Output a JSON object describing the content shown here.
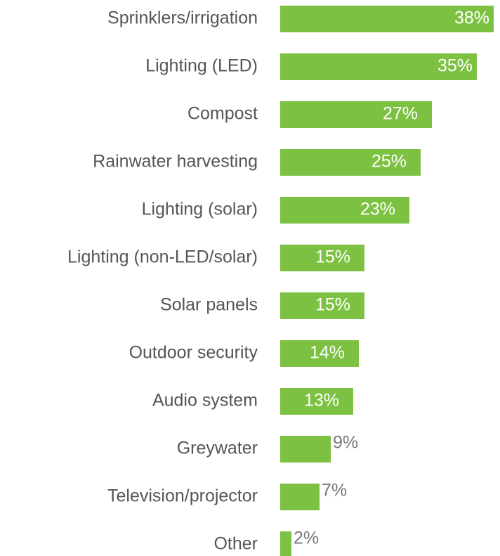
{
  "chart_data": {
    "type": "bar",
    "orientation": "horizontal",
    "categories": [
      "Sprinklers/irrigation",
      "Lighting (LED)",
      "Compost",
      "Rainwater harvesting",
      "Lighting (solar)",
      "Lighting (non-LED/solar)",
      "Solar panels",
      "Outdoor security",
      "Audio system",
      "Greywater",
      "Television/projector",
      "Other"
    ],
    "values": [
      38,
      35,
      27,
      25,
      23,
      15,
      15,
      14,
      13,
      9,
      7,
      2
    ],
    "value_labels": [
      "38%",
      "35%",
      "27%",
      "25%",
      "23%",
      "15%",
      "15%",
      "14%",
      "13%",
      "9%",
      "7%",
      "2%"
    ],
    "color": "#7dc142"
  }
}
